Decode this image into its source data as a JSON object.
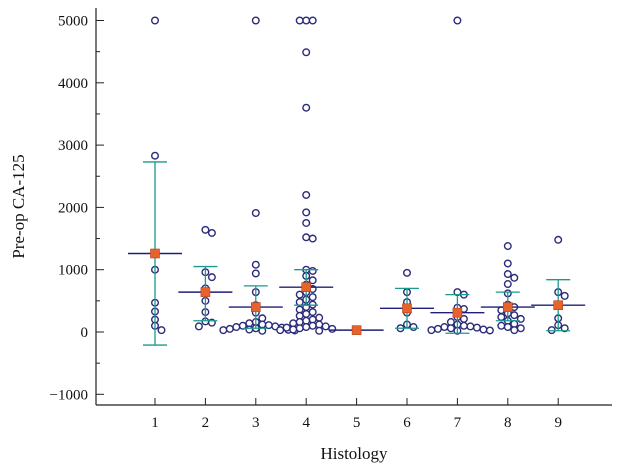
{
  "chart_data": {
    "type": "scatter",
    "xlabel": "Histology",
    "ylabel": "Pre-op CA-125",
    "categories": [
      "1",
      "2",
      "3",
      "4",
      "5",
      "6",
      "7",
      "8",
      "9"
    ],
    "ylim": [
      -1200,
      5150
    ],
    "yticks": [
      -1000,
      0,
      1000,
      2000,
      3000,
      4000,
      5000
    ],
    "ytick_labels": [
      "−1000",
      "0",
      "1000",
      "2000",
      "3000",
      "4000",
      "5000"
    ],
    "grid": false,
    "colors": {
      "points": "#2b2b7a",
      "mean": "#e8622c",
      "error_bar": "#1a9a8c",
      "mean_line": "#1f1f7a"
    },
    "groups": [
      {
        "x": 1,
        "mean": 1260,
        "lower": -210,
        "upper": 2730,
        "points": [
          5000,
          2830,
          1000,
          470,
          330,
          200,
          100,
          30
        ]
      },
      {
        "x": 2,
        "mean": 640,
        "lower": 180,
        "upper": 1050,
        "points": [
          1640,
          1590,
          960,
          880,
          700,
          500,
          320,
          170,
          150,
          90
        ]
      },
      {
        "x": 3,
        "mean": 400,
        "lower": 60,
        "upper": 740,
        "points": [
          5000,
          1910,
          1080,
          940,
          640,
          430,
          310,
          220,
          160,
          140,
          120,
          110,
          100,
          90,
          80,
          70,
          60,
          50,
          40,
          35,
          30,
          25,
          20
        ]
      },
      {
        "x": 4,
        "mean": 720,
        "lower": 430,
        "upper": 1000,
        "points": [
          5000,
          5000,
          5000,
          4490,
          3600,
          2200,
          1920,
          1750,
          1520,
          1500,
          1000,
          980,
          900,
          830,
          760,
          690,
          640,
          600,
          560,
          520,
          480,
          440,
          400,
          360,
          320,
          290,
          260,
          230,
          200,
          180,
          160,
          140,
          120,
          100,
          90,
          80,
          70,
          60,
          50,
          40,
          30,
          20
        ]
      },
      {
        "x": 5,
        "mean": 30,
        "lower": 30,
        "upper": 30,
        "points": []
      },
      {
        "x": 6,
        "mean": 380,
        "lower": 60,
        "upper": 700,
        "points": [
          950,
          640,
          480,
          310,
          120,
          80,
          60
        ]
      },
      {
        "x": 7,
        "mean": 310,
        "lower": -20,
        "upper": 600,
        "points": [
          5000,
          640,
          600,
          390,
          370,
          240,
          210,
          160,
          120,
          100,
          90,
          80,
          70,
          60,
          50,
          40,
          30,
          25,
          20
        ]
      },
      {
        "x": 8,
        "mean": 400,
        "lower": 180,
        "upper": 640,
        "points": [
          1380,
          1100,
          930,
          870,
          770,
          620,
          440,
          400,
          350,
          300,
          270,
          240,
          210,
          180,
          130,
          100,
          80,
          60,
          30
        ]
      },
      {
        "x": 9,
        "mean": 430,
        "lower": 20,
        "upper": 840,
        "points": [
          1480,
          640,
          580,
          220,
          110,
          60,
          30
        ]
      }
    ]
  }
}
